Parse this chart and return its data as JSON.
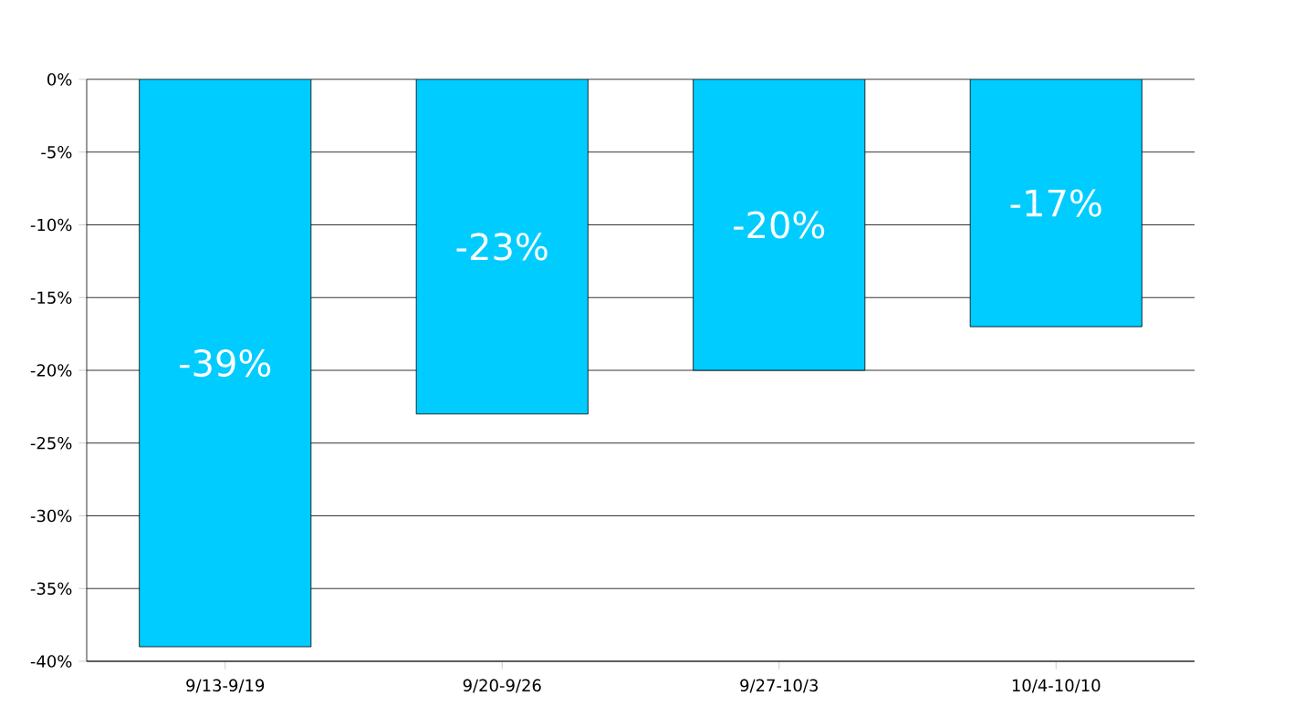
{
  "chart_data": {
    "type": "bar",
    "categories": [
      "9/13-9/19",
      "9/20-9/26",
      "9/27-10/3",
      "10/4-10/10"
    ],
    "values": [
      -39,
      -23,
      -20,
      -17
    ],
    "value_labels": [
      "-39%",
      "-23%",
      "-20%",
      "-17%"
    ],
    "color": "#00ccff",
    "ylim": [
      -40,
      0
    ],
    "yticks": [
      {
        "value": 0,
        "label": "0%"
      },
      {
        "value": -5,
        "label": "-5%"
      },
      {
        "value": -10,
        "label": "-10%"
      },
      {
        "value": -15,
        "label": "-15%"
      },
      {
        "value": -20,
        "label": "-20%"
      },
      {
        "value": -25,
        "label": "-25%"
      },
      {
        "value": -30,
        "label": "-30%"
      },
      {
        "value": -35,
        "label": "-35%"
      },
      {
        "value": -40,
        "label": "-40%"
      }
    ],
    "grid": "y"
  }
}
